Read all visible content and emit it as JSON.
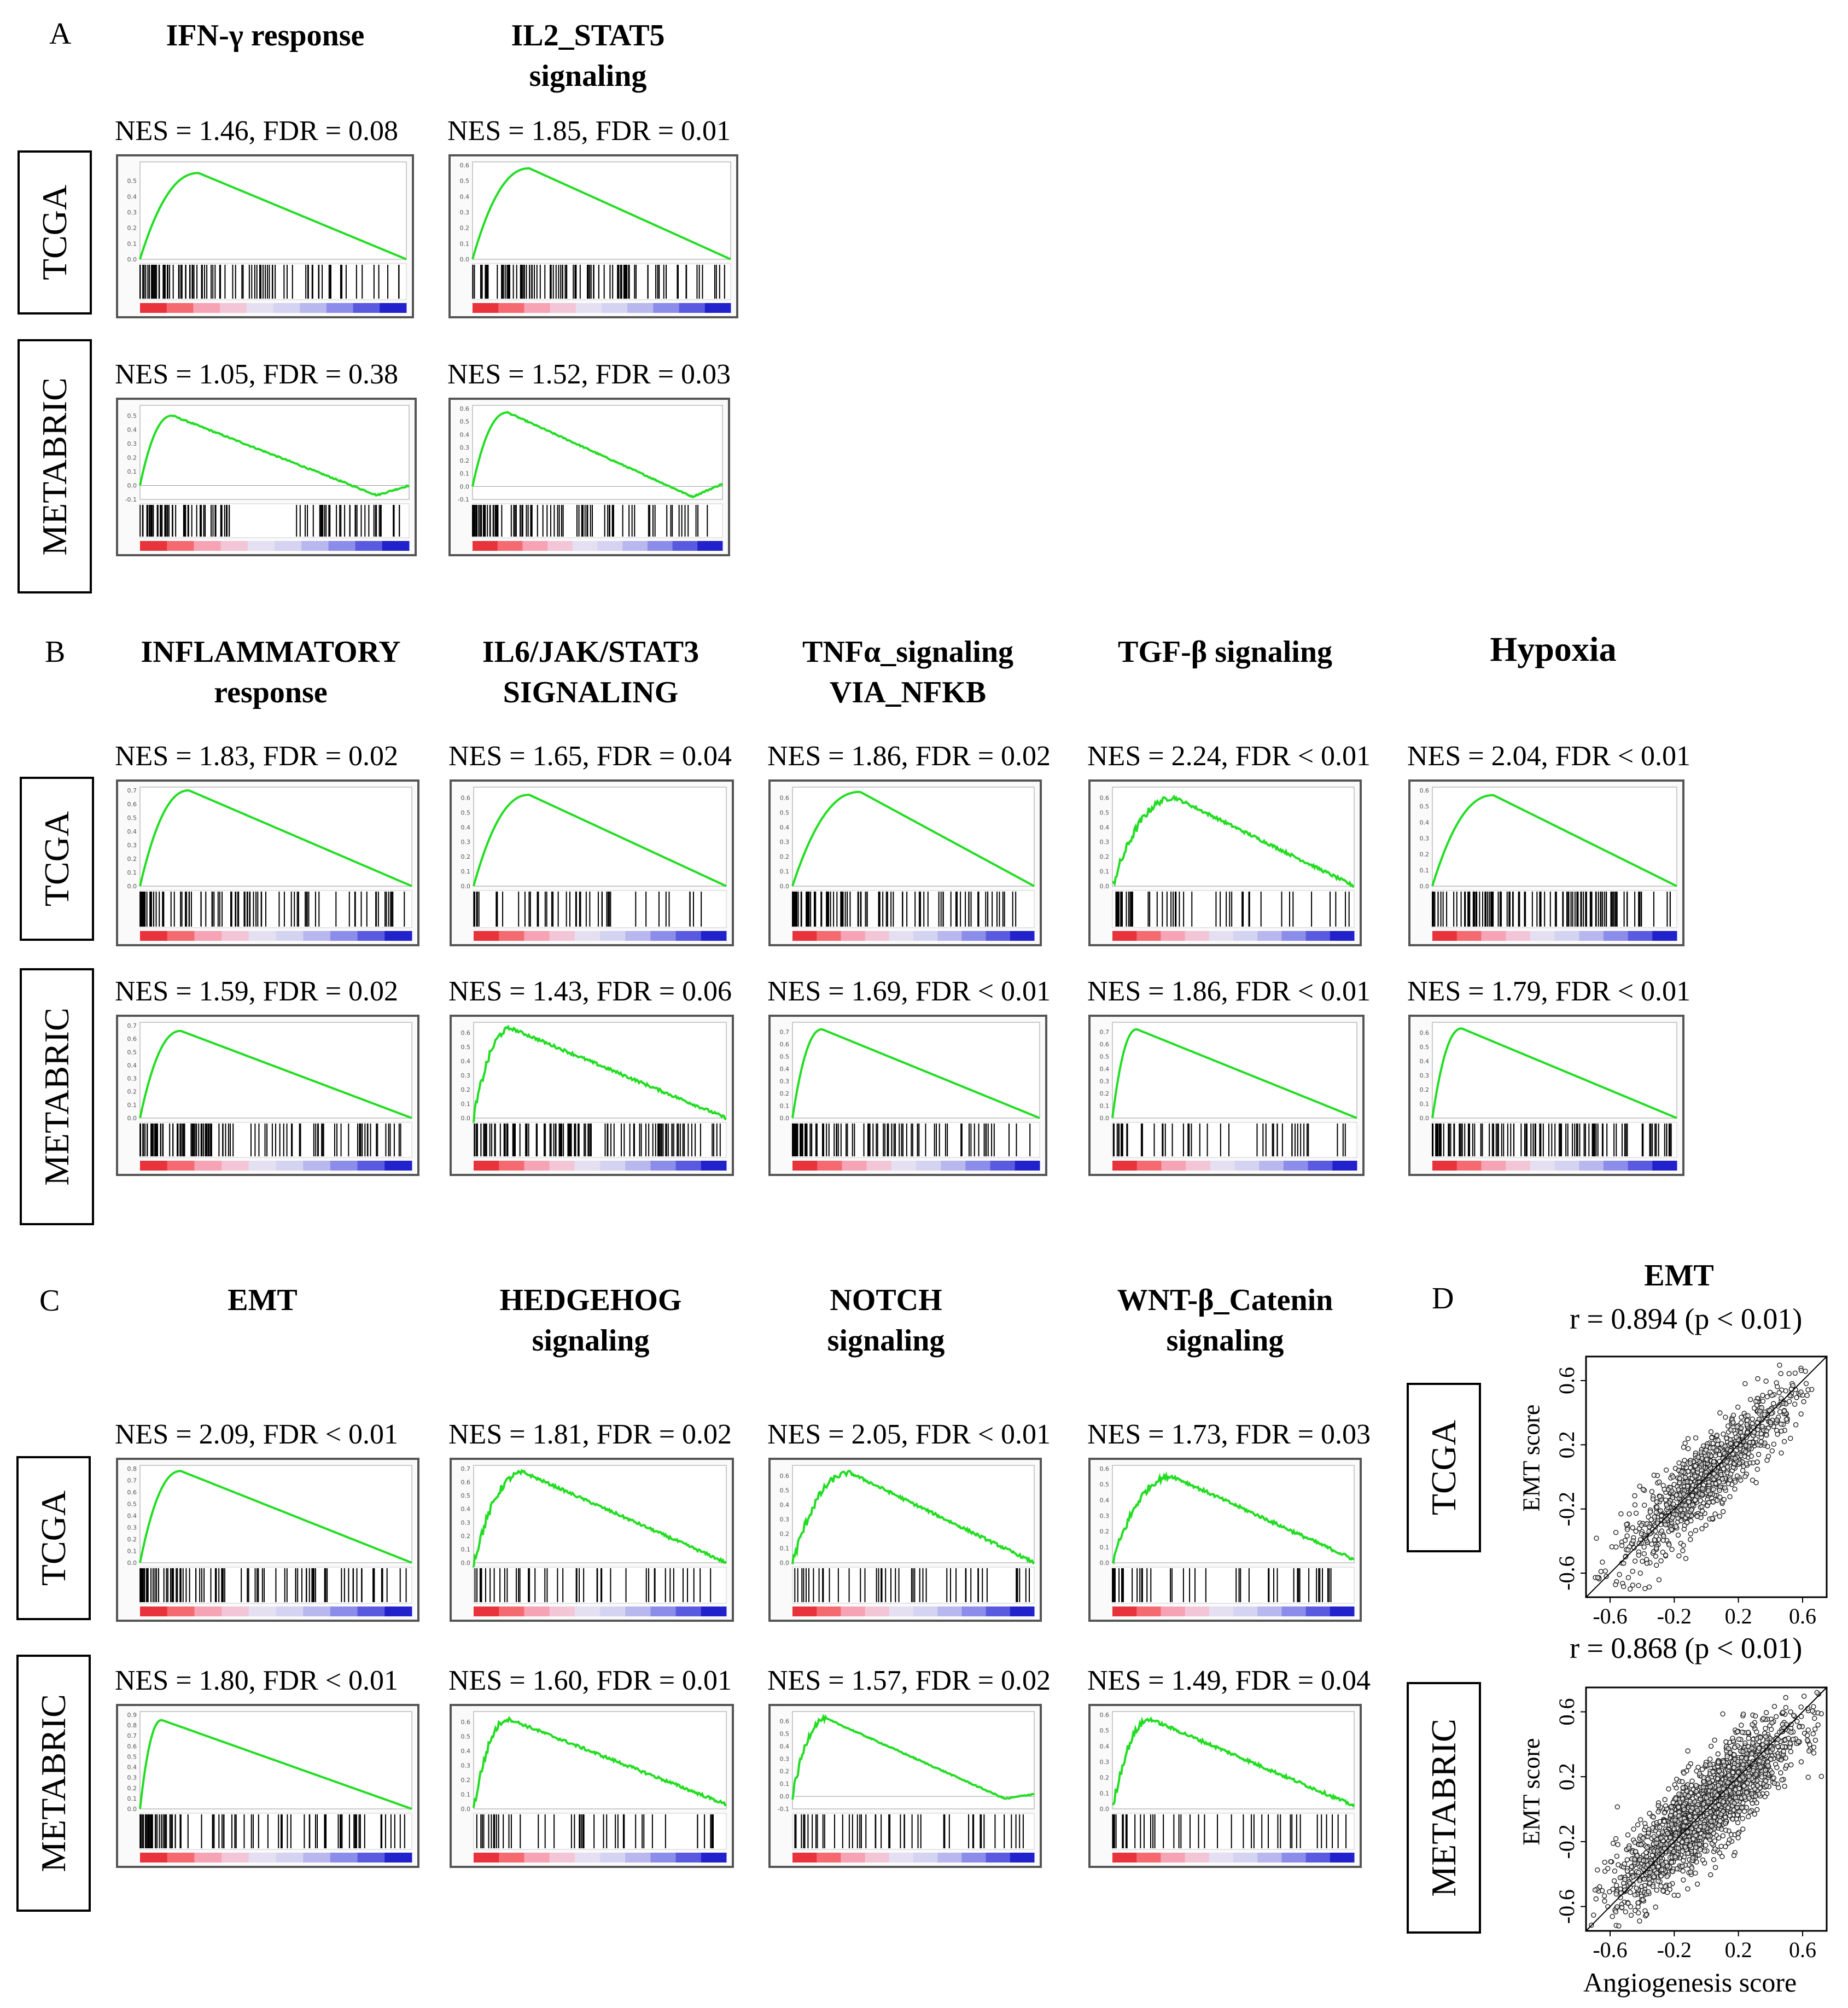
{
  "panels": [
    {
      "id": "A",
      "letter": "A",
      "titles": [
        "IFN-γ response",
        "IL2_STAT5\nsignaling"
      ],
      "row_labels": [
        "TCGA",
        "METABRIC"
      ]
    },
    {
      "id": "B",
      "letter": "B",
      "titles": [
        "INFLAMMATORY\nresponse",
        "IL6/JAK/STAT3\nSIGNALING",
        "TNFα_signaling\nVIA_NFKB",
        "TGF-β signaling",
        "Hypoxia"
      ],
      "row_labels": [
        "TCGA",
        "METABRIC"
      ]
    },
    {
      "id": "C",
      "letter": "C",
      "titles": [
        "EMT",
        "HEDGEHOG\nsignaling",
        "NOTCH\nsignaling",
        "WNT-β_Catenin\nsignaling"
      ],
      "row_labels": [
        "TCGA",
        "METABRIC"
      ]
    },
    {
      "id": "D",
      "letter": "D",
      "titles": [
        "EMT"
      ],
      "row_labels": [
        "TCGA",
        "METABRIC"
      ]
    }
  ],
  "chart_data": [
    {
      "type": "line",
      "panel": "A",
      "gene_set": "IFN-γ response",
      "cohort": "TCGA",
      "nes_label": "NES = 1.46, FDR = 0.08",
      "NES": 1.46,
      "FDR": "0.08",
      "peak_es": 0.55,
      "peak_at": 0.22,
      "end_es": 0.0,
      "ylim": [
        0,
        0.6
      ],
      "yticks": [
        "0.5",
        "0.4",
        "0.3",
        "0.2",
        "0.1",
        "0.0"
      ],
      "hit_density": "dense-left"
    },
    {
      "type": "line",
      "panel": "A",
      "gene_set": "IL2_STAT5 signaling",
      "cohort": "TCGA",
      "nes_label": "NES = 1.85, FDR = 0.01",
      "NES": 1.85,
      "FDR": "0.01",
      "peak_es": 0.58,
      "peak_at": 0.22,
      "end_es": 0.0,
      "ylim": [
        0,
        0.6
      ],
      "yticks": [
        "0.6",
        "0.5",
        "0.4",
        "0.3",
        "0.2",
        "0.1",
        "0.0"
      ],
      "hit_density": "dense"
    },
    {
      "type": "line",
      "panel": "A",
      "gene_set": "IFN-γ response",
      "cohort": "METABRIC",
      "nes_label": "NES = 1.05, FDR = 0.38",
      "NES": 1.05,
      "FDR": "0.38",
      "peak_es": 0.5,
      "peak_at": 0.12,
      "end_es": 0.0,
      "min_es": -0.07,
      "ylim": [
        -0.1,
        0.55
      ],
      "yticks": [
        "0.5",
        "0.4",
        "0.3",
        "0.2",
        "0.1",
        "0.0",
        "-0.1"
      ],
      "hit_density": "both-ends"
    },
    {
      "type": "line",
      "panel": "A",
      "gene_set": "IL2_STAT5 signaling",
      "cohort": "METABRIC",
      "nes_label": "NES = 1.52, FDR = 0.03",
      "NES": 1.52,
      "FDR": "0.03",
      "peak_es": 0.57,
      "peak_at": 0.14,
      "end_es": 0.02,
      "min_es": -0.08,
      "ylim": [
        -0.1,
        0.6
      ],
      "yticks": [
        "0.6",
        "0.5",
        "0.4",
        "0.3",
        "0.2",
        "0.1",
        "0.0",
        "-0.1"
      ],
      "hit_density": "dense-left"
    },
    {
      "type": "line",
      "panel": "B",
      "gene_set": "INFLAMMATORY response",
      "cohort": "TCGA",
      "nes_label": "NES = 1.83, FDR = 0.02",
      "NES": 1.83,
      "FDR": "0.02",
      "peak_es": 0.7,
      "peak_at": 0.18,
      "end_es": 0.0,
      "ylim": [
        0,
        0.7
      ],
      "yticks": [
        "0.7",
        "0.6",
        "0.5",
        "0.4",
        "0.3",
        "0.2",
        "0.1",
        "0.0"
      ],
      "hit_density": "dense-left"
    },
    {
      "type": "line",
      "panel": "B",
      "gene_set": "IL6/JAK/STAT3 SIGNALING",
      "cohort": "TCGA",
      "nes_label": "NES = 1.65, FDR = 0.04",
      "NES": 1.65,
      "FDR": "0.04",
      "peak_es": 0.62,
      "peak_at": 0.22,
      "end_es": 0.0,
      "ylim": [
        0,
        0.65
      ],
      "yticks": [
        "0.6",
        "0.5",
        "0.4",
        "0.3",
        "0.2",
        "0.1",
        "0.0"
      ],
      "hit_density": "sparse"
    },
    {
      "type": "line",
      "panel": "B",
      "gene_set": "TNFα_signaling VIA_NFKB",
      "cohort": "TCGA",
      "nes_label": "NES = 1.86, FDR = 0.02",
      "NES": 1.86,
      "FDR": "0.02",
      "peak_es": 0.64,
      "peak_at": 0.28,
      "end_es": 0.0,
      "ylim": [
        0,
        0.65
      ],
      "yticks": [
        "0.6",
        "0.5",
        "0.4",
        "0.3",
        "0.2",
        "0.1",
        "0.0"
      ],
      "hit_density": "dense-left"
    },
    {
      "type": "line",
      "panel": "B",
      "gene_set": "TGF-β signaling",
      "cohort": "TCGA",
      "nes_label": "NES = 2.24, FDR < 0.01",
      "NES": 2.24,
      "FDR": "< 0.01",
      "peak_es": 0.6,
      "peak_at": 0.26,
      "end_es": 0.0,
      "ylim": [
        0,
        0.65
      ],
      "yticks": [
        "0.6",
        "0.5",
        "0.4",
        "0.3",
        "0.2",
        "0.1",
        "0.0"
      ],
      "hit_density": "sparse",
      "jagged": true
    },
    {
      "type": "line",
      "panel": "B",
      "gene_set": "Hypoxia",
      "cohort": "TCGA",
      "nes_label": "NES = 2.04, FDR < 0.01",
      "NES": 2.04,
      "FDR": "< 0.01",
      "peak_es": 0.57,
      "peak_at": 0.25,
      "end_es": 0.0,
      "ylim": [
        0,
        0.6
      ],
      "yticks": [
        "0.6",
        "0.5",
        "0.4",
        "0.3",
        "0.2",
        "0.1",
        "0.0"
      ],
      "hit_density": "dense"
    },
    {
      "type": "line",
      "panel": "B",
      "gene_set": "INFLAMMATORY response",
      "cohort": "METABRIC",
      "nes_label": "NES = 1.59, FDR = 0.02",
      "NES": 1.59,
      "FDR": "0.02",
      "peak_es": 0.66,
      "peak_at": 0.15,
      "end_es": 0.0,
      "ylim": [
        0,
        0.7
      ],
      "yticks": [
        "0.7",
        "0.6",
        "0.5",
        "0.4",
        "0.3",
        "0.2",
        "0.1",
        "0.0"
      ],
      "hit_density": "dense"
    },
    {
      "type": "line",
      "panel": "B",
      "gene_set": "IL6/JAK/STAT3 SIGNALING",
      "cohort": "METABRIC",
      "nes_label": "NES = 1.43, FDR = 0.06",
      "NES": 1.43,
      "FDR": "0.06",
      "peak_es": 0.63,
      "peak_at": 0.15,
      "end_es": 0.0,
      "ylim": [
        0,
        0.65
      ],
      "yticks": [
        "0.6",
        "0.5",
        "0.4",
        "0.3",
        "0.2",
        "0.1",
        "0.0"
      ],
      "hit_density": "dense",
      "jagged": true
    },
    {
      "type": "line",
      "panel": "B",
      "gene_set": "TNFα_signaling VIA_NFKB",
      "cohort": "METABRIC",
      "nes_label": "NES = 1.69, FDR < 0.01",
      "NES": 1.69,
      "FDR": "< 0.01",
      "peak_es": 0.72,
      "peak_at": 0.12,
      "end_es": 0.0,
      "ylim": [
        0,
        0.75
      ],
      "yticks": [
        "0.7",
        "0.6",
        "0.5",
        "0.4",
        "0.3",
        "0.2",
        "0.1",
        "0.0"
      ],
      "hit_density": "dense-left"
    },
    {
      "type": "line",
      "panel": "B",
      "gene_set": "TGF-β signaling",
      "cohort": "METABRIC",
      "nes_label": "NES = 1.86, FDR < 0.01",
      "NES": 1.86,
      "FDR": "< 0.01",
      "peak_es": 0.72,
      "peak_at": 0.1,
      "end_es": 0.0,
      "ylim": [
        0,
        0.75
      ],
      "yticks": [
        "0.7",
        "0.6",
        "0.5",
        "0.4",
        "0.3",
        "0.2",
        "0.1",
        "0.0"
      ],
      "hit_density": "sparse"
    },
    {
      "type": "line",
      "panel": "B",
      "gene_set": "Hypoxia",
      "cohort": "METABRIC",
      "nes_label": "NES = 1.79, FDR < 0.01",
      "NES": 1.79,
      "FDR": "< 0.01",
      "peak_es": 0.63,
      "peak_at": 0.12,
      "end_es": 0.0,
      "ylim": [
        0,
        0.65
      ],
      "yticks": [
        "0.6",
        "0.5",
        "0.4",
        "0.3",
        "0.2",
        "0.1",
        "0.0"
      ],
      "hit_density": "dense"
    },
    {
      "type": "line",
      "panel": "C",
      "gene_set": "EMT",
      "cohort": "TCGA",
      "nes_label": "NES = 2.09, FDR < 0.01",
      "NES": 2.09,
      "FDR": "< 0.01",
      "peak_es": 0.78,
      "peak_at": 0.15,
      "end_es": 0.0,
      "ylim": [
        0,
        0.8
      ],
      "yticks": [
        "0.8",
        "0.7",
        "0.6",
        "0.5",
        "0.4",
        "0.3",
        "0.2",
        "0.1",
        "0.0"
      ],
      "hit_density": "dense-left"
    },
    {
      "type": "line",
      "panel": "C",
      "gene_set": "HEDGEHOG signaling",
      "cohort": "TCGA",
      "nes_label": "NES = 1.81, FDR = 0.02",
      "NES": 1.81,
      "FDR": "0.02",
      "peak_es": 0.67,
      "peak_at": 0.2,
      "end_es": 0.0,
      "ylim": [
        0,
        0.7
      ],
      "yticks": [
        "0.7",
        "0.6",
        "0.5",
        "0.4",
        "0.3",
        "0.2",
        "0.1",
        "0.0"
      ],
      "hit_density": "sparse",
      "jagged": true
    },
    {
      "type": "line",
      "panel": "C",
      "gene_set": "NOTCH signaling",
      "cohort": "TCGA",
      "nes_label": "NES = 2.05, FDR < 0.01",
      "NES": 2.05,
      "FDR": "< 0.01",
      "peak_es": 0.62,
      "peak_at": 0.24,
      "end_es": 0.0,
      "ylim": [
        0,
        0.65
      ],
      "yticks": [
        "0.6",
        "0.5",
        "0.4",
        "0.3",
        "0.2",
        "0.1",
        "0.0"
      ],
      "hit_density": "sparse",
      "jagged": true
    },
    {
      "type": "line",
      "panel": "C",
      "gene_set": "WNT-β_Catenin signaling",
      "cohort": "TCGA",
      "nes_label": "NES = 1.73, FDR = 0.03",
      "NES": 1.73,
      "FDR": "0.03",
      "peak_es": 0.55,
      "peak_at": 0.25,
      "end_es": 0.02,
      "ylim": [
        0,
        0.6
      ],
      "yticks": [
        "0.6",
        "0.5",
        "0.4",
        "0.3",
        "0.2",
        "0.1",
        "0.0"
      ],
      "hit_density": "sparse",
      "jagged": true
    },
    {
      "type": "line",
      "panel": "C",
      "gene_set": "EMT",
      "cohort": "METABRIC",
      "nes_label": "NES = 1.80, FDR < 0.01",
      "NES": 1.8,
      "FDR": "< 0.01",
      "peak_es": 0.85,
      "peak_at": 0.08,
      "end_es": 0.0,
      "ylim": [
        0,
        0.9
      ],
      "yticks": [
        "0.9",
        "0.8",
        "0.7",
        "0.6",
        "0.5",
        "0.4",
        "0.3",
        "0.2",
        "0.1",
        "0.0"
      ],
      "hit_density": "dense-left"
    },
    {
      "type": "line",
      "panel": "C",
      "gene_set": "HEDGEHOG signaling",
      "cohort": "METABRIC",
      "nes_label": "NES = 1.60, FDR = 0.01",
      "NES": 1.6,
      "FDR": "0.01",
      "peak_es": 0.62,
      "peak_at": 0.14,
      "end_es": 0.03,
      "ylim": [
        0,
        0.65
      ],
      "yticks": [
        "0.6",
        "0.5",
        "0.4",
        "0.3",
        "0.2",
        "0.1",
        "0.0"
      ],
      "hit_density": "sparse",
      "jagged": true
    },
    {
      "type": "line",
      "panel": "C",
      "gene_set": "NOTCH signaling",
      "cohort": "METABRIC",
      "nes_label": "NES = 1.57, FDR = 0.02",
      "NES": 1.57,
      "FDR": "0.02",
      "peak_es": 0.62,
      "peak_at": 0.14,
      "end_es": 0.02,
      "min_es": -0.02,
      "ylim": [
        -0.1,
        0.65
      ],
      "yticks": [
        "0.6",
        "0.5",
        "0.4",
        "0.3",
        "0.2",
        "0.1",
        "0.0",
        "-0.1"
      ],
      "hit_density": "sparse",
      "jagged": true
    },
    {
      "type": "line",
      "panel": "C",
      "gene_set": "WNT-β_Catenin signaling",
      "cohort": "METABRIC",
      "nes_label": "NES = 1.49, FDR = 0.04",
      "NES": 1.49,
      "FDR": "0.04",
      "peak_es": 0.57,
      "peak_at": 0.16,
      "end_es": 0.02,
      "ylim": [
        0,
        0.6
      ],
      "yticks": [
        "0.6",
        "0.5",
        "0.4",
        "0.3",
        "0.2",
        "0.1",
        "0.0"
      ],
      "hit_density": "sparse",
      "jagged": true
    },
    {
      "type": "scatter",
      "panel": "D",
      "title": "EMT",
      "cohort": "TCGA",
      "r_label": "r = 0.894 (p < 0.01)",
      "r": 0.894,
      "p": "< 0.01",
      "xlabel": "",
      "ylabel": "EMT score",
      "xlim": [
        -0.75,
        0.75
      ],
      "ylim": [
        -0.75,
        0.75
      ],
      "xticks": [
        "-0.6",
        "-0.2",
        "0.2",
        "0.6"
      ],
      "yticks": [
        "-0.6",
        "-0.2",
        "0.2",
        "0.6"
      ],
      "n_points": 1000,
      "trend": "y = x"
    },
    {
      "type": "scatter",
      "panel": "D",
      "title": "",
      "cohort": "METABRIC",
      "r_label": "r = 0.868 (p < 0.01)",
      "r": 0.868,
      "p": "< 0.01",
      "xlabel": "Angiogenesis score",
      "ylabel": "EMT score",
      "xlim": [
        -0.75,
        0.75
      ],
      "ylim": [
        -0.75,
        0.75
      ],
      "xticks": [
        "-0.6",
        "-0.2",
        "0.2",
        "0.6"
      ],
      "yticks": [
        "-0.6",
        "-0.2",
        "0.2",
        "0.6"
      ],
      "n_points": 1900,
      "trend": "y = x"
    }
  ]
}
